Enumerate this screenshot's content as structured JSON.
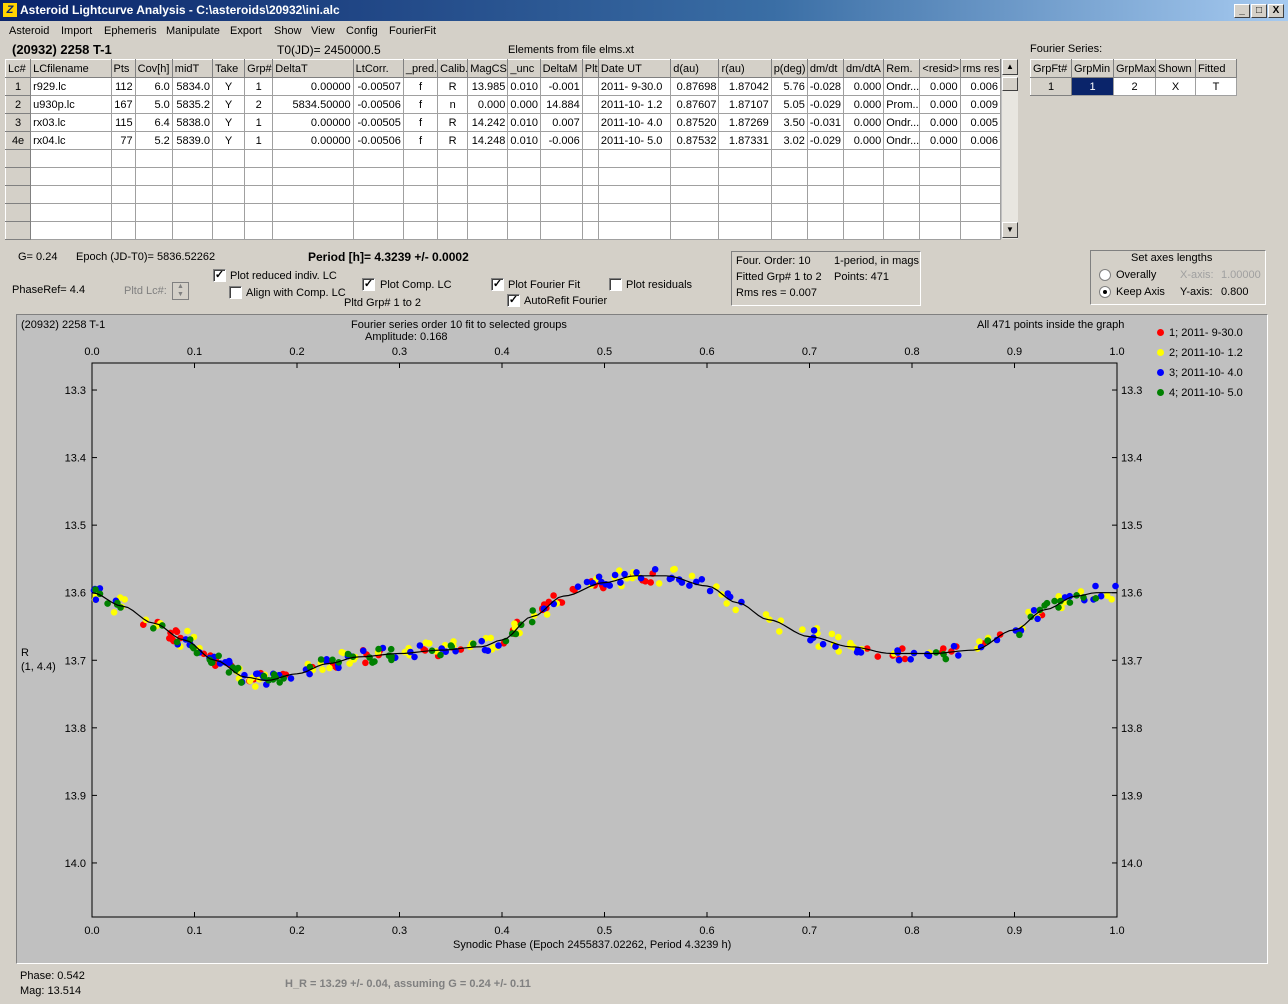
{
  "window": {
    "title": "Asteroid Lightcurve Analysis - C:\\asteroids\\20932\\ini.alc",
    "icon_name": "app-icon",
    "controls": [
      "_",
      "□",
      "X"
    ]
  },
  "menu": [
    "Asteroid",
    "Import",
    "Ephemeris",
    "Manipulate",
    "Export",
    "Show",
    "View",
    "Config",
    "FourierFit"
  ],
  "header": {
    "asteroid": "(20932) 2258 T-1",
    "t0": "T0(JD)= 2450000.5",
    "elements": "Elements from file elms.xt"
  },
  "lc_table": {
    "columns": [
      "Lc#",
      "LCfilename",
      "Pts",
      "Cov[h]",
      "midT",
      "Take",
      "Grp#",
      "DeltaT",
      "LtCorr.",
      "_pred.",
      "Calib.",
      "MagCS",
      "_unc",
      "DeltaM",
      "Plt",
      "Date UT",
      "d(au)",
      "r(au)",
      "p(deg)",
      "dm/dt",
      "dm/dtA",
      "Rem.",
      "<resid>",
      "rms res"
    ],
    "rows": [
      [
        "1",
        "r929.lc",
        "112",
        "6.0",
        "5834.0",
        "Y",
        "1",
        "0.00000",
        "-0.00507",
        "f",
        "R",
        "13.985",
        "0.010",
        "-0.001",
        "",
        "2011- 9-30.0",
        "0.87698",
        "1.87042",
        "5.76",
        "-0.028",
        "0.000",
        "Ondr...",
        "0.000",
        "0.006"
      ],
      [
        "2",
        "u930p.lc",
        "167",
        "5.0",
        "5835.2",
        "Y",
        "2",
        "5834.50000",
        "-0.00506",
        "f",
        "n",
        "0.000",
        "0.000",
        "14.884",
        "",
        "2011-10- 1.2",
        "0.87607",
        "1.87107",
        "5.05",
        "-0.029",
        "0.000",
        "Prom...",
        "0.000",
        "0.009"
      ],
      [
        "3",
        "rx03.lc",
        "115",
        "6.4",
        "5838.0",
        "Y",
        "1",
        "0.00000",
        "-0.00505",
        "f",
        "R",
        "14.242",
        "0.010",
        "0.007",
        "",
        "2011-10- 4.0",
        "0.87520",
        "1.87269",
        "3.50",
        "-0.031",
        "0.000",
        "Ondr...",
        "0.000",
        "0.005"
      ],
      [
        "4e",
        "rx04.lc",
        "77",
        "5.2",
        "5839.0",
        "Y",
        "1",
        "0.00000",
        "-0.00506",
        "f",
        "R",
        "14.248",
        "0.010",
        "-0.006",
        "",
        "2011-10- 5.0",
        "0.87532",
        "1.87331",
        "3.02",
        "-0.029",
        "0.000",
        "Ondr...",
        "0.000",
        "0.006"
      ]
    ],
    "empty_rows": 5
  },
  "fourier_series": {
    "label": "Fourier Series:",
    "columns": [
      "GrpFt#",
      "GrpMin",
      "GrpMax",
      "Shown",
      "Fitted"
    ],
    "rows": [
      [
        "1",
        "1",
        "2",
        "X",
        "T"
      ]
    ]
  },
  "controls": {
    "g_label": "G= 0.24",
    "epoch": "Epoch (JD-T0)= 5836.52262",
    "period": "Period [h]= 4.3239 +/- 0.0002",
    "phaseref": "PhaseRef= 4.4",
    "pltd_lc": "Pltd Lc#:",
    "plot_reduced": "Plot reduced indiv. LC",
    "align_comp": "Align with Comp. LC",
    "plot_comp": "Plot Comp. LC",
    "pltd_grp": "Pltd Grp#  1   to   2",
    "plot_fourier": "Plot Fourier Fit",
    "autorefit": "AutoRefit Fourier",
    "plot_residuals": "Plot residuals",
    "checks": {
      "plot_reduced": true,
      "align_comp": false,
      "plot_comp": true,
      "plot_fourier": true,
      "autorefit": true,
      "plot_residuals": false
    },
    "info_lines": [
      "Four. Order: 10",
      "1-period, in mags",
      "Fitted Grp# 1 to 2",
      "Points: 471",
      "Rms res     = 0.007"
    ],
    "axes": {
      "title": "Set axes lengths",
      "overally": "Overally",
      "keep_axis": "Keep Axis",
      "x_axis_label": "X-axis:",
      "x_axis_value": "1.00000",
      "y_axis_label": "Y-axis:",
      "y_axis_value": "0.800",
      "selected": "keep_axis"
    }
  },
  "chart_data": {
    "type": "scatter",
    "object_label": "(20932) 2258 T-1",
    "title": "Fourier series order 10 fit to selected groups",
    "subtitle": "Amplitude: 0.168",
    "status": "All 471 points inside the graph",
    "xlabel": "Synodic Phase (Epoch 2455837.02262, Period 4.3239 h)",
    "ylabel": "R",
    "ylabel2": "(1, 4.4)",
    "xlim": [
      0.0,
      1.0
    ],
    "ylim": [
      14.08,
      13.26
    ],
    "x_ticks": [
      "0.0",
      "0.1",
      "0.2",
      "0.3",
      "0.4",
      "0.5",
      "0.6",
      "0.7",
      "0.8",
      "0.9",
      "1.0"
    ],
    "y_ticks": [
      "13.3",
      "13.4",
      "13.5",
      "13.6",
      "13.7",
      "13.8",
      "13.9",
      "14.0"
    ],
    "y_tick_values": [
      13.3,
      13.4,
      13.5,
      13.6,
      13.7,
      13.8,
      13.9,
      14.0
    ],
    "fit_curve": {
      "x": [
        0.0,
        0.03,
        0.06,
        0.09,
        0.12,
        0.15,
        0.17,
        0.2,
        0.23,
        0.26,
        0.3,
        0.34,
        0.38,
        0.4,
        0.43,
        0.46,
        0.5,
        0.53,
        0.56,
        0.6,
        0.63,
        0.66,
        0.7,
        0.74,
        0.78,
        0.82,
        0.86,
        0.9,
        0.93,
        0.96,
        0.98,
        1.0
      ],
      "y": [
        13.6,
        13.62,
        13.645,
        13.67,
        13.7,
        13.725,
        13.73,
        13.72,
        13.705,
        13.695,
        13.69,
        13.685,
        13.68,
        13.67,
        13.635,
        13.605,
        13.585,
        13.575,
        13.575,
        13.59,
        13.615,
        13.64,
        13.665,
        13.68,
        13.69,
        13.69,
        13.685,
        13.655,
        13.625,
        13.605,
        13.6,
        13.6
      ]
    },
    "series": [
      {
        "name": "1; 2011- 9-30.0",
        "color": "#ff0000"
      },
      {
        "name": "2; 2011-10- 1.2",
        "color": "#ffff00"
      },
      {
        "name": "3; 2011-10- 4.0",
        "color": "#0000ff"
      },
      {
        "name": "4; 2011-10- 5.0",
        "color": "#008000"
      }
    ]
  },
  "footer": {
    "phase": "Phase:  0.542",
    "mag": "Mag:   13.514",
    "hr": "H_R = 13.29 +/- 0.04, assuming G = 0.24 +/- 0.11"
  }
}
